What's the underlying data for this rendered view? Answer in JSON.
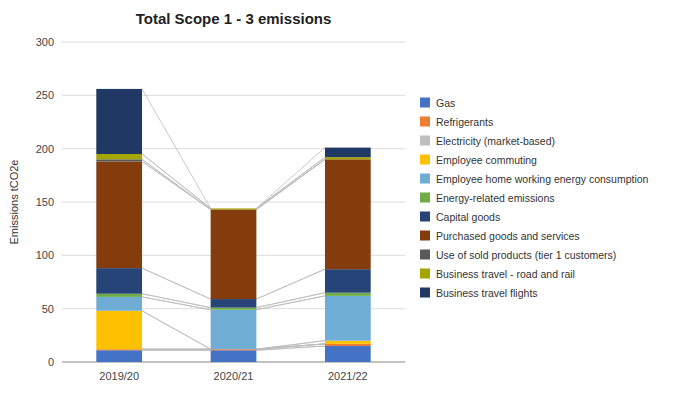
{
  "chart_data": {
    "type": "bar",
    "stacked": true,
    "title": "Total Scope 1 - 3 emissions",
    "ylabel": "Emissions tCO2e",
    "categories": [
      "2019/20",
      "2020/21",
      "2021/22"
    ],
    "ylim": [
      0,
      300
    ],
    "yticks": [
      0,
      50,
      100,
      150,
      200,
      250,
      300
    ],
    "grid": true,
    "legend": "right",
    "series": [
      {
        "name": "Gas",
        "color": "#4472C4",
        "values": [
          11,
          11,
          15
        ]
      },
      {
        "name": "Refrigerants",
        "color": "#ED7D31",
        "values": [
          1,
          1,
          2
        ]
      },
      {
        "name": "Electricity (market-based)",
        "color": "#BFBFBF",
        "values": [
          0,
          0,
          0
        ]
      },
      {
        "name": "Employee commuting",
        "color": "#FFC000",
        "values": [
          36,
          0,
          3
        ]
      },
      {
        "name": "Employee home working energy consumption",
        "color": "#70ADD4",
        "values": [
          13,
          37,
          42
        ]
      },
      {
        "name": "Energy-related emissions",
        "color": "#70AD47",
        "values": [
          3,
          2,
          3
        ]
      },
      {
        "name": "Capital goods",
        "color": "#264478",
        "values": [
          24,
          8,
          22
        ]
      },
      {
        "name": "Purchased goods and services",
        "color": "#843C0C",
        "values": [
          100,
          84,
          103
        ]
      },
      {
        "name": "Use of sold products (tier 1 customers)",
        "color": "#595959",
        "values": [
          2,
          0,
          0
        ]
      },
      {
        "name": "Business travel - road and rail",
        "color": "#A5A500",
        "values": [
          5,
          1,
          2
        ]
      },
      {
        "name": "Business travel flights",
        "color": "#203864",
        "values": [
          61,
          0,
          9
        ]
      }
    ]
  }
}
